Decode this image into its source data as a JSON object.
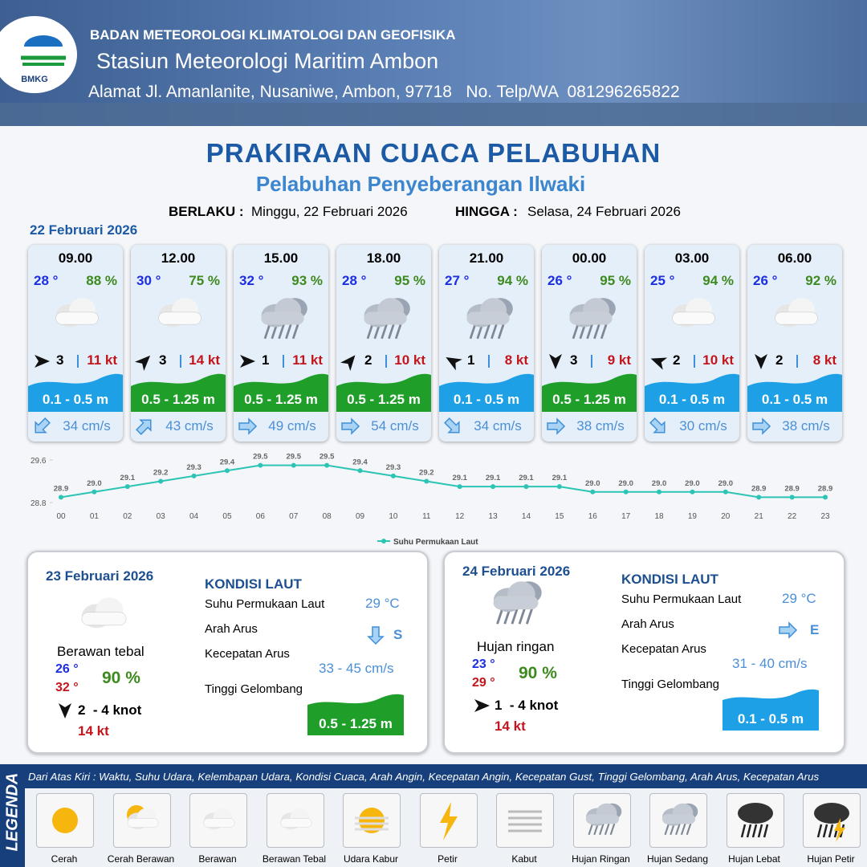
{
  "header": {
    "agency": "BADAN METEOROLOGI KLIMATOLOGI DAN GEOFISIKA",
    "station": "Stasiun Meteorologi Maritim Ambon",
    "address": "Alamat Jl. Amanlanite, Nusaniwe, Ambon, 97718   No. Telp/WA  081296265822",
    "logo": "BMKG"
  },
  "title": "PRAKIRAAN CUACA PELABUHAN",
  "subtitle": "Pelabuhan Penyeberangan Ilwaki",
  "valid": {
    "from_label": "BERLAKU :",
    "from": "Minggu, 22 Februari 2026",
    "to_label": "HINGGA :",
    "to": "Selasa, 24 Februari 2026"
  },
  "day1_date": "22 Februari 2026",
  "forecasts": [
    {
      "time": "09.00",
      "temp": "28 °",
      "humidity": "88 %",
      "weather": "cloudy",
      "wind_arrow_deg": 0,
      "wind": "3",
      "gust": "11 kt",
      "wave": "0.1 - 0.5 m",
      "wave_color": "#1ea0e6",
      "current_arrow_deg": 135,
      "current": "34 cm/s"
    },
    {
      "time": "12.00",
      "temp": "30 °",
      "humidity": "75 %",
      "weather": "cloudy",
      "wind_arrow_deg": -45,
      "wind": "3",
      "gust": "14 kt",
      "wave": "0.5 - 1.25 m",
      "wave_color": "#1f9e2a",
      "current_arrow_deg": -45,
      "current": "43 cm/s"
    },
    {
      "time": "15.00",
      "temp": "32 °",
      "humidity": "93 %",
      "weather": "rain",
      "wind_arrow_deg": 0,
      "wind": "1",
      "gust": "11 kt",
      "wave": "0.5 - 1.25 m",
      "wave_color": "#1f9e2a",
      "current_arrow_deg": 0,
      "current": "49 cm/s"
    },
    {
      "time": "18.00",
      "temp": "28 °",
      "humidity": "95 %",
      "weather": "rain",
      "wind_arrow_deg": -50,
      "wind": "2",
      "gust": "10 kt",
      "wave": "0.5 - 1.25 m",
      "wave_color": "#1f9e2a",
      "current_arrow_deg": 0,
      "current": "54 cm/s"
    },
    {
      "time": "21.00",
      "temp": "27 °",
      "humidity": "94 %",
      "weather": "rain",
      "wind_arrow_deg": 210,
      "wind": "1",
      "gust": "8 kt",
      "wave": "0.1 - 0.5 m",
      "wave_color": "#1ea0e6",
      "current_arrow_deg": 45,
      "current": "34 cm/s"
    },
    {
      "time": "00.00",
      "temp": "26 °",
      "humidity": "95 %",
      "weather": "rain",
      "wind_arrow_deg": 90,
      "wind": "3",
      "gust": "9 kt",
      "wave": "0.5 - 1.25 m",
      "wave_color": "#1f9e2a",
      "current_arrow_deg": 0,
      "current": "38 cm/s"
    },
    {
      "time": "03.00",
      "temp": "25 °",
      "humidity": "94 %",
      "weather": "cloudy",
      "wind_arrow_deg": 200,
      "wind": "2",
      "gust": "10 kt",
      "wave": "0.1 - 0.5 m",
      "wave_color": "#1ea0e6",
      "current_arrow_deg": 45,
      "current": "30 cm/s"
    },
    {
      "time": "06.00",
      "temp": "26 °",
      "humidity": "92 %",
      "weather": "cloudy",
      "wind_arrow_deg": 90,
      "wind": "2",
      "gust": "8 kt",
      "wave": "0.1 - 0.5 m",
      "wave_color": "#1ea0e6",
      "current_arrow_deg": 0,
      "current": "38 cm/s"
    }
  ],
  "chart_data": {
    "type": "line",
    "categories": [
      "00",
      "01",
      "02",
      "03",
      "04",
      "05",
      "06",
      "07",
      "08",
      "09",
      "10",
      "11",
      "12",
      "13",
      "14",
      "15",
      "16",
      "17",
      "18",
      "19",
      "20",
      "21",
      "22",
      "23"
    ],
    "series": [
      {
        "name": "Suhu Permukaan Laut",
        "color": "#2cc4b4",
        "values": [
          28.9,
          29.0,
          29.1,
          29.2,
          29.3,
          29.4,
          29.5,
          29.5,
          29.5,
          29.4,
          29.3,
          29.2,
          29.1,
          29.1,
          29.1,
          29.1,
          29.0,
          29.0,
          29.0,
          29.0,
          29.0,
          28.9,
          28.9,
          28.9
        ],
        "value_labels": [
          "28.9",
          "29.0",
          "29.1",
          "29.2",
          "29.3",
          "29.4",
          "29.5",
          "29.5",
          "29.5",
          "29.4",
          "29.3",
          "29.2",
          "29.1",
          "29.1",
          "29.1",
          "29.1",
          "29.0",
          "29.0",
          "29.0",
          "29.0",
          "29.0",
          "28.9",
          "28.9",
          "28.9"
        ]
      }
    ],
    "ylim": [
      28.8,
      29.6
    ],
    "yticks": [
      28.8,
      29.6
    ]
  },
  "days": [
    {
      "date": "23 Februari 2026",
      "weather_icon": "cloudy",
      "weather": "Berawan tebal",
      "temp_min": "26 °",
      "temp_max": "32 °",
      "humidity": "90 %",
      "wind_arrow_deg": 90,
      "wind": "2  - 4 knot",
      "gust": "14 kt",
      "sea_title": "KONDISI LAUT",
      "sea": [
        {
          "label": "Suhu Permukaan Laut",
          "value": "29 °C"
        },
        {
          "label": "Arah Arus",
          "value": "S",
          "arrow_deg": 90
        },
        {
          "label": "Kecepatan Arus",
          "value": "33 - 45 cm/s"
        },
        {
          "label": "Tinggi Gelombang",
          "value": "0.5 - 1.25 m",
          "color": "#1f9e2a"
        }
      ]
    },
    {
      "date": "24 Februari 2026",
      "weather_icon": "rain",
      "weather": "Hujan ringan",
      "temp_min": "23 °",
      "temp_max": "29 °",
      "humidity": "90 %",
      "wind_arrow_deg": 0,
      "wind": "1  - 4 knot",
      "gust": "14 kt",
      "sea_title": "KONDISI LAUT",
      "sea": [
        {
          "label": "Suhu Permukaan Laut",
          "value": "29 °C"
        },
        {
          "label": "Arah Arus",
          "value": "E",
          "arrow_deg": 0
        },
        {
          "label": "Kecepatan Arus",
          "value": "31 - 40 cm/s"
        },
        {
          "label": "Tinggi Gelombang",
          "value": "0.1 - 0.5 m",
          "color": "#1ea0e6"
        }
      ]
    }
  ],
  "legend": {
    "title": "LEGENDA",
    "description": "Dari Atas Kiri : Waktu, Suhu Udara, Kelembapan Udara, Kondisi Cuaca, Arah Angin, Kecepatan Angin, Kecepatan Gust, Tinggi Gelombang, Arah Arus, Kecepatan Arus",
    "items": [
      "Cerah",
      "Cerah Berawan",
      "Berawan",
      "Berawan Tebal",
      "Udara Kabur",
      "Petir",
      "Kabut",
      "Hujan Ringan",
      "Hujan Sedang",
      "Hujan Lebat",
      "Hujan Petir"
    ]
  }
}
